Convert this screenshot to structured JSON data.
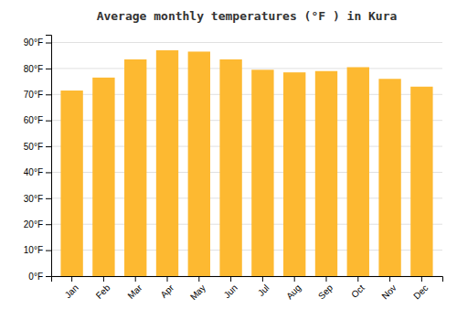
{
  "chart_data": {
    "type": "bar",
    "title": "Average monthly temperatures (°F ) in Kura",
    "categories": [
      "Jan",
      "Feb",
      "Mar",
      "Apr",
      "May",
      "Jun",
      "Jul",
      "Aug",
      "Sep",
      "Oct",
      "Nov",
      "Dec"
    ],
    "values": [
      71.5,
      76.5,
      83.5,
      87.0,
      86.5,
      83.5,
      79.5,
      78.5,
      79.0,
      80.5,
      76.0,
      73.0
    ],
    "color": "#FDB931",
    "ylim": [
      0,
      93
    ],
    "yticks": [
      {
        "value": 0,
        "label": "0°F"
      },
      {
        "value": 10,
        "label": "10°F"
      },
      {
        "value": 20,
        "label": "20°F"
      },
      {
        "value": 30,
        "label": "30°F"
      },
      {
        "value": 40,
        "label": "40°F"
      },
      {
        "value": 50,
        "label": "50°F"
      },
      {
        "value": 60,
        "label": "60°F"
      },
      {
        "value": 70,
        "label": "70°F"
      },
      {
        "value": 80,
        "label": "80°F"
      },
      {
        "value": 90,
        "label": "90°F"
      }
    ],
    "grid": true
  }
}
